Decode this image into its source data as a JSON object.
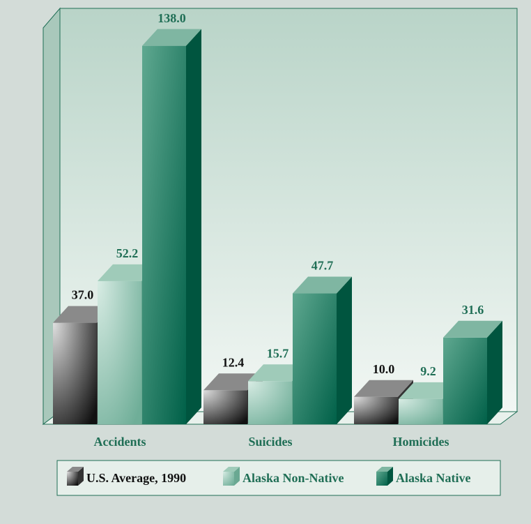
{
  "chart_data": {
    "type": "bar3d",
    "categories": [
      "Accidents",
      "Suicides",
      "Homicides"
    ],
    "series": [
      {
        "name": "U.S. Average, 1990",
        "color": "#5a5a5a",
        "values": [
          37.0,
          12.4,
          10.0
        ],
        "value_labels": [
          "37.0",
          "12.4",
          "10.0"
        ]
      },
      {
        "name": "Alaska Non-Native",
        "color": "#8fc4b0",
        "values": [
          52.2,
          15.7,
          9.2
        ],
        "value_labels": [
          "52.2",
          "15.7",
          "9.2"
        ]
      },
      {
        "name": "Alaska Native",
        "color": "#0a7a5e",
        "values": [
          138.0,
          47.7,
          31.6
        ],
        "value_labels": [
          "138.0",
          "47.7",
          "31.6"
        ]
      }
    ]
  }
}
